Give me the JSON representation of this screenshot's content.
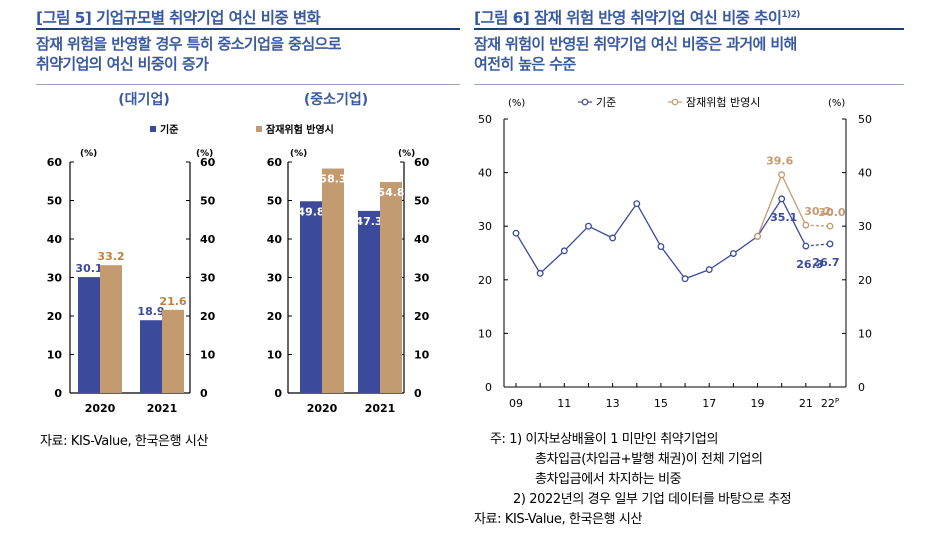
{
  "fig5": {
    "title": "[그림 5] 기업규모별 취약기업 여신 비중 변화",
    "subtitle_lines": [
      "잠재 위험을 반영할 경우 특히 중소기업을 중심으로",
      "취약기업의 여신 비중이 증가"
    ],
    "source": "자료: KIS-Value, 한국은행 시산"
  },
  "fig6": {
    "title": "[그림 6] 잠재 위험 반영 취약기업 여신 비중 추이",
    "title_sup": "1)2)",
    "subtitle_lines": [
      "잠재 위험이 반영된 취약기업 여신 비중은 과거에 비해",
      "여전히 높은 수준"
    ],
    "notes": [
      "주: 1) 이자보상배율이 1 미만인 취약기업의",
      "총차입금(차입금+발행 채권)이 전체 기업의",
      "총차입금에서 차지하는 비중",
      "2) 2022년의 경우 일부 기업 데이터를 바탕으로 추정",
      "자료: KIS-Value, 한국은행 시산"
    ]
  },
  "chart_data": [
    {
      "type": "bar",
      "title": "(대기업)",
      "legend": [
        "기준",
        "잠재위험 반영시"
      ],
      "legend_position": "top",
      "unit_left": "(%)",
      "unit_right": "(%)",
      "categories": [
        "2020",
        "2021"
      ],
      "series": [
        {
          "name": "기준",
          "values": [
            30.1,
            18.9
          ],
          "color": "#3b4a9a",
          "label_color": "#3b4a9a"
        },
        {
          "name": "잠재위험 반영시",
          "values": [
            33.2,
            21.6
          ],
          "color": "#c49a70",
          "label_color": "#c08040"
        }
      ],
      "ylim": [
        0,
        60
      ],
      "yticks": [
        0,
        10,
        20,
        30,
        40,
        50,
        60
      ]
    },
    {
      "type": "bar",
      "title": "(중소기업)",
      "unit_left": "(%)",
      "unit_right": "(%)",
      "categories": [
        "2020",
        "2021"
      ],
      "series": [
        {
          "name": "기준",
          "values": [
            49.8,
            47.3
          ],
          "color": "#3b4a9a",
          "label_color": "#ffffff"
        },
        {
          "name": "잠재위험 반영시",
          "values": [
            58.3,
            54.8
          ],
          "color": "#c49a70",
          "label_color": "#ffffff"
        }
      ],
      "ylim": [
        0,
        60
      ],
      "yticks": [
        0,
        10,
        20,
        30,
        40,
        50,
        60
      ]
    },
    {
      "type": "line",
      "legend": [
        "기준",
        "잠재위험 반영시"
      ],
      "legend_position": "top",
      "unit_left": "(%)",
      "unit_right": "(%)",
      "x": [
        2009,
        2010,
        2011,
        2012,
        2013,
        2014,
        2015,
        2016,
        2017,
        2018,
        2019,
        2020,
        2021,
        2022
      ],
      "xtick_labels": [
        {
          "x": 2009,
          "label": "09"
        },
        {
          "x": 2011,
          "label": "11"
        },
        {
          "x": 2013,
          "label": "13"
        },
        {
          "x": 2015,
          "label": "15"
        },
        {
          "x": 2017,
          "label": "17"
        },
        {
          "x": 2019,
          "label": "19"
        },
        {
          "x": 2021,
          "label": "21"
        },
        {
          "x": 2022,
          "label": "22P"
        }
      ],
      "ylim": [
        0,
        50
      ],
      "yticks": [
        0,
        10,
        20,
        30,
        40,
        50
      ],
      "series": [
        {
          "name": "기준",
          "color": "#3b4a9a",
          "values": [
            28.7,
            21.2,
            25.4,
            30.0,
            27.8,
            34.2,
            26.2,
            20.2,
            21.9,
            24.9,
            28.1,
            35.1,
            26.3,
            26.7
          ]
        },
        {
          "name": "잠재위험 반영시",
          "color": "#c49a70",
          "start_x": 2019,
          "values": [
            null,
            null,
            null,
            null,
            null,
            null,
            null,
            null,
            null,
            null,
            28.1,
            39.6,
            30.2,
            30.0
          ]
        }
      ],
      "data_labels": [
        {
          "series": 0,
          "x": 2020,
          "text": "35.1"
        },
        {
          "series": 0,
          "x": 2021,
          "text": "26.3"
        },
        {
          "series": 0,
          "x": 2022,
          "text": "26.7"
        },
        {
          "series": 1,
          "x": 2020,
          "text": "39.6"
        },
        {
          "series": 1,
          "x": 2021,
          "text": "30.2"
        },
        {
          "series": 1,
          "x": 2022,
          "text": "30.0"
        }
      ],
      "dashed_from": 2021
    }
  ]
}
